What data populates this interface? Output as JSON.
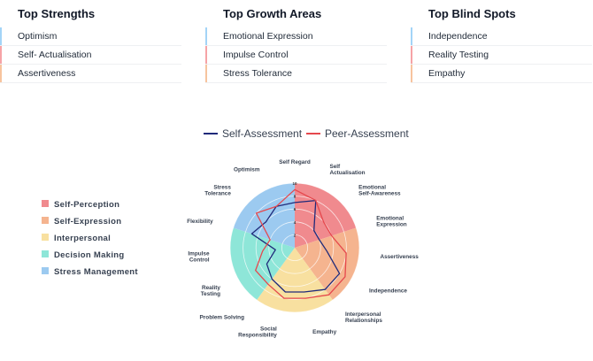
{
  "panels": [
    {
      "title": "Top Strengths",
      "items": [
        {
          "label": "Optimism",
          "color": "#a3d4f7"
        },
        {
          "label": "Self- Actualisation",
          "color": "#f6a3a6"
        },
        {
          "label": "Assertiveness",
          "color": "#f7c49e"
        }
      ]
    },
    {
      "title": "Top Growth Areas",
      "items": [
        {
          "label": "Emotional Expression",
          "color": "#a3d4f7"
        },
        {
          "label": "Impulse Control",
          "color": "#f6a3a6"
        },
        {
          "label": "Stress Tolerance",
          "color": "#f7c49e"
        }
      ]
    },
    {
      "title": "Top Blind Spots",
      "items": [
        {
          "label": "Independence",
          "color": "#a3d4f7"
        },
        {
          "label": "Reality Testing",
          "color": "#f6a3a6"
        },
        {
          "label": "Empathy",
          "color": "#f7c49e"
        }
      ]
    }
  ],
  "legend_series": [
    {
      "label": "Self-Assessment",
      "color": "#1f2a7a"
    },
    {
      "label": "Peer-Assessment",
      "color": "#e5484d"
    }
  ],
  "categories_legend": [
    {
      "label": "Self-Perception",
      "color": "#f08a8e"
    },
    {
      "label": "Self-Expression",
      "color": "#f5b48f"
    },
    {
      "label": "Interpersonal",
      "color": "#f8e0a0"
    },
    {
      "label": "Decision Making",
      "color": "#8ee6d8"
    },
    {
      "label": "Stress Management",
      "color": "#9ccaf0"
    }
  ],
  "chart_data": {
    "type": "radar",
    "rmax": 10,
    "ticks": [
      2,
      4,
      6,
      8,
      10
    ],
    "axes": [
      {
        "label": [
          "Self Regard"
        ],
        "self": 7,
        "peer": 9
      },
      {
        "label": [
          "Self",
          "Actualisation"
        ],
        "self": 8,
        "peer": 8
      },
      {
        "label": [
          "Emotional",
          "Self-Awareness"
        ],
        "self": 4,
        "peer": 6
      },
      {
        "label": [
          "Emotional",
          "Expression"
        ],
        "self": 4,
        "peer": 6
      },
      {
        "label": [
          "Assertiveness"
        ],
        "self": 5,
        "peer": 8
      },
      {
        "label": [
          "Independence"
        ],
        "self": 8,
        "peer": 9
      },
      {
        "label": [
          "Interpersonal",
          "Relationships"
        ],
        "self": 8,
        "peer": 9
      },
      {
        "label": [
          "Empathy"
        ],
        "self": 7,
        "peer": 8
      },
      {
        "label": [
          "Social",
          "Responsibility"
        ],
        "self": 7,
        "peer": 8
      },
      {
        "label": [
          "Problem Solving"
        ],
        "self": 6,
        "peer": 7
      },
      {
        "label": [
          "Reality",
          "Testing"
        ],
        "self": 5,
        "peer": 7
      },
      {
        "label": [
          "Impulse",
          "Control"
        ],
        "self": 3,
        "peer": 5
      },
      {
        "label": [
          "Flexibility"
        ],
        "self": 7,
        "peer": 4
      },
      {
        "label": [
          "Stress",
          "Tolerance"
        ],
        "self": 6,
        "peer": 8
      },
      {
        "label": [
          "Optimism"
        ],
        "self": 7,
        "peer": 7
      }
    ],
    "sectors": [
      {
        "name": "Self-Perception",
        "color": "#f08a8e",
        "from": 0,
        "to": 3
      },
      {
        "name": "Self-Expression",
        "color": "#f5b48f",
        "from": 3,
        "to": 6
      },
      {
        "name": "Interpersonal",
        "color": "#f8e0a0",
        "from": 6,
        "to": 9
      },
      {
        "name": "Decision Making",
        "color": "#8ee6d8",
        "from": 9,
        "to": 12
      },
      {
        "name": "Stress Management",
        "color": "#9ccaf0",
        "from": 12,
        "to": 15
      }
    ],
    "series": [
      {
        "name": "Self-Assessment",
        "key": "self",
        "color": "#1f2a7a"
      },
      {
        "name": "Peer-Assessment",
        "key": "peer",
        "color": "#e5484d"
      }
    ]
  }
}
